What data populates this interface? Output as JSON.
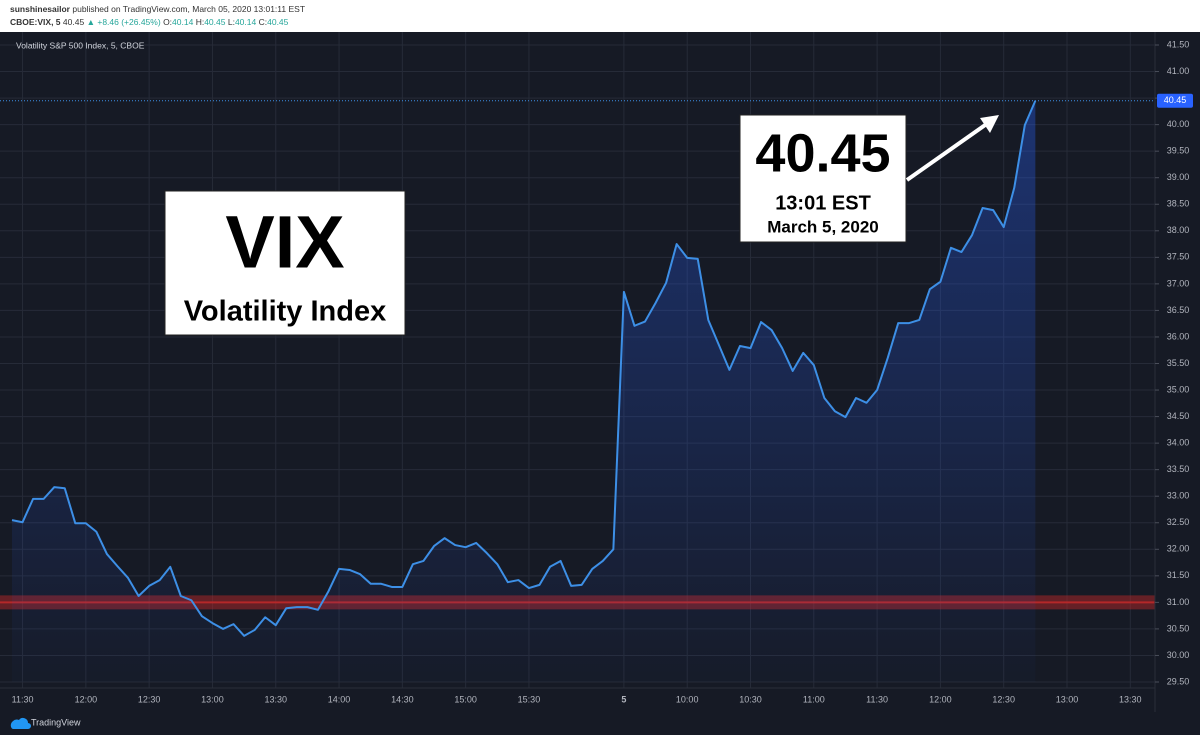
{
  "header": {
    "author": "sunshinesailor",
    "published": "published on TradingView.com, March 05, 2020 13:01:11 EST",
    "quote": [
      "CBOE:VIX, 5",
      "40.45",
      "▲ +8.46 (+26.45%)",
      "O:",
      "40.14",
      "H:",
      "40.45",
      "L:",
      "40.14",
      "C:",
      "40.45"
    ]
  },
  "chart_data": {
    "type": "area",
    "categories": [
      null,
      "11:30",
      null,
      null,
      null,
      null,
      null,
      "12:00",
      null,
      null,
      null,
      null,
      null,
      "12:30",
      null,
      null,
      null,
      null,
      null,
      "13:00",
      null,
      null,
      null,
      null,
      null,
      "13:30",
      null,
      null,
      null,
      null,
      null,
      "14:00",
      null,
      null,
      null,
      null,
      null,
      "14:30",
      null,
      null,
      null,
      null,
      null,
      "15:00",
      null,
      null,
      null,
      null,
      null,
      "15:30",
      null,
      null,
      null,
      null,
      null,
      null,
      null,
      null,
      "5",
      null,
      null,
      null,
      null,
      null,
      "10:00",
      null,
      null,
      null,
      null,
      null,
      "10:30",
      null,
      null,
      null,
      null,
      null,
      "11:00",
      null,
      null,
      null,
      null,
      null,
      "11:30",
      null,
      null,
      null,
      null,
      null,
      "12:00",
      null,
      null,
      null,
      null,
      null,
      "12:30",
      null,
      null,
      null,
      null,
      null,
      "13:00",
      null,
      null,
      null,
      null,
      null,
      "13:30",
      null
    ],
    "series": [
      {
        "name": "Volatility S&P 500 Index, 5, CBOE",
        "color": "#3d8fe6",
        "values": [
          32.55,
          32.51,
          32.95,
          32.95,
          33.17,
          33.15,
          32.49,
          32.49,
          32.33,
          31.91,
          31.68,
          31.46,
          31.12,
          31.31,
          31.42,
          31.67,
          31.12,
          31.04,
          30.74,
          30.61,
          30.5,
          30.59,
          30.37,
          30.48,
          30.72,
          30.57,
          30.89,
          30.91,
          30.91,
          30.86,
          31.21,
          31.63,
          31.61,
          31.53,
          31.35,
          31.35,
          31.29,
          31.29,
          31.72,
          31.78,
          32.06,
          32.21,
          32.08,
          32.04,
          32.12,
          31.93,
          31.72,
          31.38,
          31.42,
          31.27,
          31.33,
          31.67,
          31.78,
          31.31,
          31.33,
          31.63,
          31.78,
          32.0,
          36.85,
          36.21,
          36.29,
          36.64,
          37.02,
          37.75,
          37.49,
          37.47,
          36.32,
          35.85,
          35.38,
          35.83,
          35.79,
          36.28,
          36.13,
          35.79,
          35.36,
          35.7,
          35.47,
          34.85,
          34.6,
          34.49,
          34.85,
          34.76,
          35.0,
          35.6,
          36.26,
          36.26,
          36.32,
          36.9,
          37.04,
          37.68,
          37.6,
          37.92,
          38.43,
          38.39,
          38.07,
          38.81,
          39.99,
          40.45,
          null,
          null,
          null,
          null,
          null,
          null,
          null,
          null,
          null,
          null
        ]
      }
    ],
    "ylim": [
      29.5,
      41.5
    ],
    "yticks": [
      {
        "value": 29.5,
        "label": "29.50"
      },
      {
        "value": 30,
        "label": "30.00"
      },
      {
        "value": 30.5,
        "label": "30.50"
      },
      {
        "value": 31,
        "label": "31.00"
      },
      {
        "value": 31.5,
        "label": "31.50"
      },
      {
        "value": 32,
        "label": "32.00"
      },
      {
        "value": 32.5,
        "label": "32.50"
      },
      {
        "value": 33,
        "label": "33.00"
      },
      {
        "value": 33.5,
        "label": "33.50"
      },
      {
        "value": 34,
        "label": "34.00"
      },
      {
        "value": 34.5,
        "label": "34.50"
      },
      {
        "value": 35,
        "label": "35.00"
      },
      {
        "value": 35.5,
        "label": "35.50"
      },
      {
        "value": 36,
        "label": "36.00"
      },
      {
        "value": 36.5,
        "label": "36.50"
      },
      {
        "value": 37,
        "label": "37.00"
      },
      {
        "value": 37.5,
        "label": "37.50"
      },
      {
        "value": 38,
        "label": "38.00"
      },
      {
        "value": 38.5,
        "label": "38.50"
      },
      {
        "value": 39,
        "label": "39.00"
      },
      {
        "value": 39.5,
        "label": "39.50"
      },
      {
        "value": 40,
        "label": "40.00"
      },
      {
        "value": 40.5,
        "label": "40.50"
      },
      {
        "value": 41,
        "label": "41.00"
      },
      {
        "value": 41.5,
        "label": "41.50"
      }
    ],
    "grid": true,
    "last_price": {
      "value": 40.45,
      "label": "40.45"
    },
    "level_line": {
      "value": 31,
      "color": "#c62828"
    },
    "annotations": {
      "title": "VIX",
      "subtitle": "Volatility Index",
      "price": "40.45",
      "time": "13:01 EST",
      "date": "March 5, 2020"
    },
    "brand": "TradingView"
  }
}
